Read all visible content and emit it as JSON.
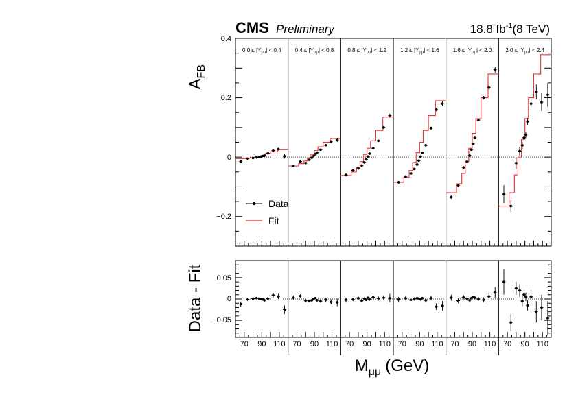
{
  "header": {
    "experiment": "CMS",
    "status": "Preliminary",
    "lumi": "18.8 fb",
    "lumi_sup": "-1",
    "energy": "(8 TeV)"
  },
  "chart_data": {
    "type": "line",
    "ylabel_main": "A",
    "ylabel_main_sub": "FB",
    "ylabel_ratio": "Data - Fit",
    "xlabel": "M",
    "xlabel_sub": "μμ",
    "xlabel_unit": "(GeV)",
    "ylim_main": [
      -0.3,
      0.4
    ],
    "ylim_ratio": [
      -0.09,
      0.09
    ],
    "y_ticks_main": [
      "0.4",
      "0.2",
      "0",
      "−0.2"
    ],
    "y_ticks_ratio": [
      "0.05",
      "0",
      "−0.05"
    ],
    "x_tick_labels": [
      "70",
      "90",
      "110"
    ],
    "legend": {
      "data": "Data",
      "fit": "Fit",
      "position": "bottom-left"
    },
    "colors": {
      "data": "#000000",
      "fit": "#ee3333",
      "frame": "#000000"
    },
    "rapidity_bins": [
      {
        "label": "0.0 ≤ |Y",
        "label_sub": "μμ",
        "label_end": "| < 0.4",
        "fit": [
          -0.005,
          -0.003,
          -0.002,
          0.0,
          0.003,
          0.006,
          0.012,
          0.018,
          0.025
        ],
        "data": [
          [
            66,
            -0.015
          ],
          [
            74,
            -0.005
          ],
          [
            80,
            -0.003
          ],
          [
            84,
            -0.001
          ],
          [
            87,
            0.0
          ],
          [
            89,
            0.002
          ],
          [
            91,
            0.004
          ],
          [
            93,
            0.005
          ],
          [
            97,
            0.013
          ],
          [
            103,
            0.022
          ],
          [
            109,
            0.027
          ],
          [
            116,
            0.003
          ]
        ],
        "err": [
          0.004,
          0.003,
          0.003,
          0.003,
          0.002,
          0.002,
          0.002,
          0.003,
          0.003,
          0.004,
          0.005,
          0.008
        ],
        "resid": [
          -0.012,
          -0.001,
          0.001,
          0.002,
          0.001,
          0.0,
          -0.001,
          -0.003,
          0.001,
          0.009,
          0.006,
          -0.025
        ],
        "resid_err": [
          0.006,
          0.004,
          0.004,
          0.003,
          0.003,
          0.002,
          0.002,
          0.003,
          0.004,
          0.005,
          0.006,
          0.01
        ]
      },
      {
        "label": "0.4 ≤ |Y",
        "label_sub": "μμ",
        "label_end": "| < 0.8",
        "fit": [
          -0.03,
          -0.022,
          -0.013,
          -0.002,
          0.01,
          0.022,
          0.035,
          0.05,
          0.063
        ],
        "data": [
          [
            66,
            -0.03
          ],
          [
            74,
            -0.015
          ],
          [
            80,
            -0.02
          ],
          [
            84,
            -0.009
          ],
          [
            87,
            -0.002
          ],
          [
            89,
            0.004
          ],
          [
            91,
            0.01
          ],
          [
            93,
            0.015
          ],
          [
            97,
            0.025
          ],
          [
            103,
            0.04
          ],
          [
            109,
            0.052
          ],
          [
            116,
            0.058
          ]
        ],
        "err": [
          0.004,
          0.003,
          0.003,
          0.003,
          0.002,
          0.002,
          0.002,
          0.003,
          0.003,
          0.004,
          0.005,
          0.007
        ],
        "resid": [
          0.003,
          0.007,
          -0.004,
          -0.005,
          -0.003,
          0.0,
          0.002,
          -0.003,
          -0.005,
          -0.002,
          -0.007,
          -0.008
        ],
        "resid_err": [
          0.005,
          0.004,
          0.004,
          0.003,
          0.003,
          0.002,
          0.002,
          0.003,
          0.004,
          0.005,
          0.006,
          0.009
        ]
      },
      {
        "label": "0.8 ≤ |Y",
        "label_sub": "μμ",
        "label_end": "| < 1.2",
        "fit": [
          -0.062,
          -0.05,
          -0.035,
          -0.015,
          0.008,
          0.03,
          0.055,
          0.09,
          0.135
        ],
        "data": [
          [
            66,
            -0.06
          ],
          [
            74,
            -0.045
          ],
          [
            80,
            -0.038
          ],
          [
            84,
            -0.028
          ],
          [
            87,
            -0.018
          ],
          [
            89,
            -0.008
          ],
          [
            91,
            0.002
          ],
          [
            93,
            0.012
          ],
          [
            97,
            0.03
          ],
          [
            103,
            0.055
          ],
          [
            109,
            0.1
          ],
          [
            116,
            0.14
          ]
        ],
        "err": [
          0.005,
          0.004,
          0.003,
          0.003,
          0.003,
          0.002,
          0.002,
          0.003,
          0.003,
          0.004,
          0.005,
          0.007
        ],
        "resid": [
          -0.002,
          -0.001,
          0.002,
          -0.004,
          0.001,
          -0.002,
          0.003,
          -0.001,
          0.004,
          0.001,
          0.003,
          0.002
        ],
        "resid_err": [
          0.005,
          0.004,
          0.004,
          0.003,
          0.003,
          0.003,
          0.002,
          0.003,
          0.004,
          0.005,
          0.006,
          0.01
        ]
      },
      {
        "label": "1.2 ≤ |Y",
        "label_sub": "μμ",
        "label_end": "| < 1.6",
        "fit": [
          -0.085,
          -0.068,
          -0.045,
          -0.018,
          0.015,
          0.05,
          0.09,
          0.14,
          0.19
        ],
        "data": [
          [
            66,
            -0.085
          ],
          [
            74,
            -0.065
          ],
          [
            80,
            -0.055
          ],
          [
            84,
            -0.04
          ],
          [
            87,
            -0.025
          ],
          [
            89,
            -0.012
          ],
          [
            91,
            0.002
          ],
          [
            93,
            0.015
          ],
          [
            97,
            0.04
          ],
          [
            103,
            0.098
          ],
          [
            109,
            0.16
          ],
          [
            116,
            0.18
          ]
        ],
        "err": [
          0.005,
          0.004,
          0.004,
          0.003,
          0.003,
          0.003,
          0.003,
          0.003,
          0.004,
          0.005,
          0.006,
          0.008
        ],
        "resid": [
          -0.001,
          0.002,
          -0.002,
          0.0,
          0.002,
          0.001,
          -0.001,
          0.002,
          -0.003,
          0.002,
          -0.018,
          -0.016
        ],
        "resid_err": [
          0.006,
          0.005,
          0.004,
          0.004,
          0.003,
          0.003,
          0.003,
          0.003,
          0.004,
          0.005,
          0.008,
          0.011
        ]
      },
      {
        "label": "1.6 ≤ |Y",
        "label_sub": "μμ",
        "label_end": "| < 2.0",
        "fit": [
          -0.12,
          -0.09,
          -0.055,
          -0.015,
          0.03,
          0.08,
          0.13,
          0.2,
          0.28
        ],
        "data": [
          [
            66,
            -0.135
          ],
          [
            74,
            -0.095
          ],
          [
            80,
            -0.035
          ],
          [
            84,
            -0.015
          ],
          [
            87,
            0.005
          ],
          [
            89,
            0.025
          ],
          [
            91,
            0.045
          ],
          [
            93,
            0.065
          ],
          [
            97,
            0.125
          ],
          [
            103,
            0.2
          ],
          [
            109,
            0.235
          ],
          [
            116,
            0.295
          ]
        ],
        "err": [
          0.006,
          0.005,
          0.005,
          0.004,
          0.004,
          0.003,
          0.003,
          0.004,
          0.004,
          0.006,
          0.008,
          0.01
        ],
        "resid": [
          0.003,
          -0.004,
          0.004,
          0.001,
          -0.003,
          0.002,
          0.005,
          0.003,
          0.0,
          -0.002,
          0.006,
          0.015
        ],
        "resid_err": [
          0.007,
          0.006,
          0.005,
          0.004,
          0.004,
          0.003,
          0.003,
          0.004,
          0.005,
          0.006,
          0.009,
          0.013
        ]
      },
      {
        "label": "2.0 ≤ |Y",
        "label_sub": "μμ",
        "label_end": "| < 2.4",
        "fit": [
          -0.165,
          -0.12,
          -0.06,
          0.0,
          0.06,
          0.13,
          0.2,
          0.28,
          0.345
        ],
        "data": [
          [
            66,
            -0.125
          ],
          [
            74,
            -0.165
          ],
          [
            80,
            -0.02
          ],
          [
            84,
            0.02
          ],
          [
            87,
            0.04
          ],
          [
            89,
            0.065
          ],
          [
            91,
            0.075
          ],
          [
            93,
            0.12
          ],
          [
            97,
            0.18
          ],
          [
            103,
            0.22
          ],
          [
            109,
            0.185
          ],
          [
            116,
            0.21
          ]
        ],
        "err": [
          0.03,
          0.02,
          0.02,
          0.015,
          0.012,
          0.01,
          0.01,
          0.012,
          0.015,
          0.025,
          0.03,
          0.04
        ],
        "resid": [
          0.04,
          -0.055,
          0.025,
          0.02,
          -0.005,
          0.01,
          0.005,
          -0.015,
          0.005,
          -0.03,
          -0.02,
          -0.045
        ],
        "resid_err": [
          0.03,
          0.02,
          0.015,
          0.015,
          0.012,
          0.01,
          0.01,
          0.012,
          0.015,
          0.025,
          0.03,
          0.04
        ]
      }
    ]
  }
}
